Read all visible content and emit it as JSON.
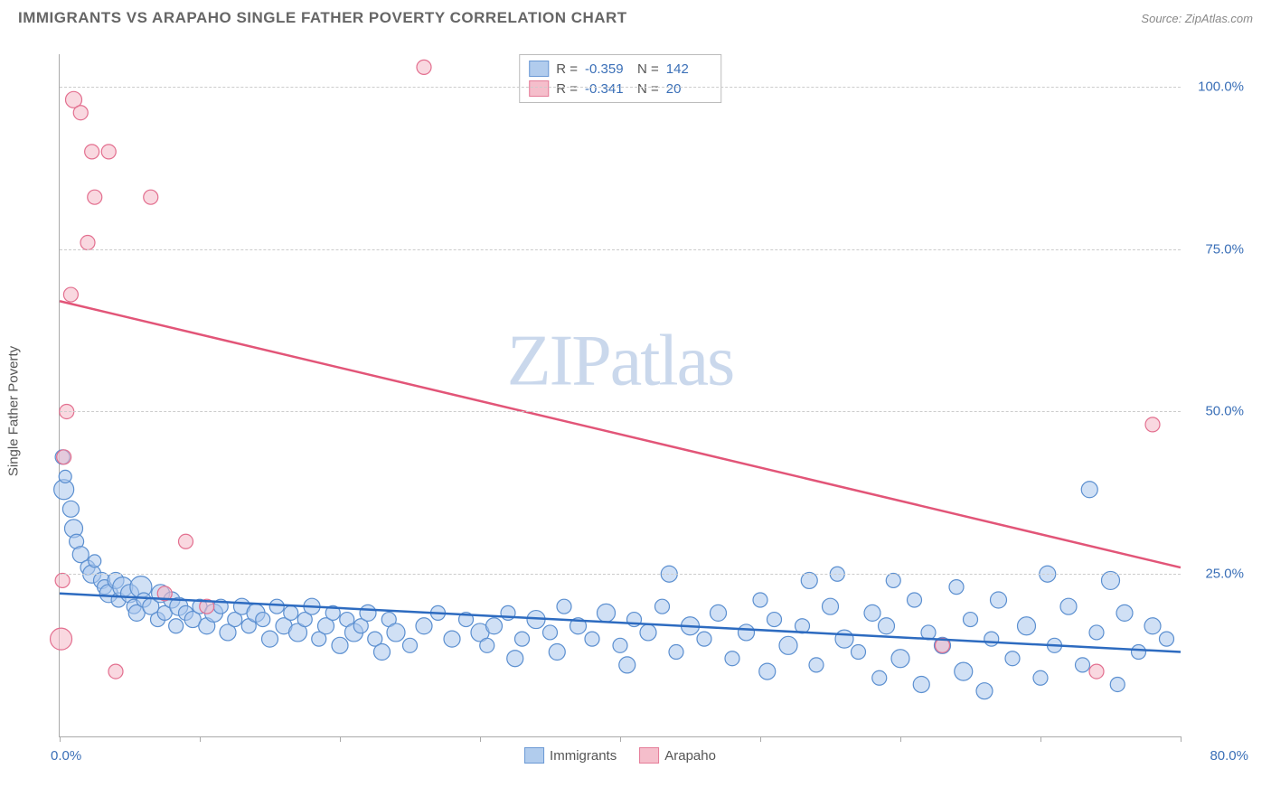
{
  "title": "IMMIGRANTS VS ARAPAHO SINGLE FATHER POVERTY CORRELATION CHART",
  "source_label": "Source:",
  "source_name": "ZipAtlas.com",
  "watermark_a": "ZIP",
  "watermark_b": "atlas",
  "ylabel": "Single Father Poverty",
  "chart": {
    "type": "scatter",
    "xlim": [
      0,
      80
    ],
    "ylim": [
      0,
      105
    ],
    "x_ticks": [
      0,
      10,
      20,
      30,
      40,
      50,
      60,
      70,
      80
    ],
    "y_gridlines": [
      25,
      50,
      75,
      100
    ],
    "y_tick_labels": [
      "25.0%",
      "50.0%",
      "75.0%",
      "100.0%"
    ],
    "x_limit_labels": {
      "left": "0.0%",
      "right": "80.0%"
    },
    "background_color": "#ffffff",
    "grid_color": "#cccccc",
    "axis_color": "#aaaaaa",
    "series": [
      {
        "name": "Immigrants",
        "fill": "#a9c7ec",
        "stroke": "#5b8fd0",
        "fill_opacity": 0.55,
        "line_color": "#2d6bc0",
        "line_width": 2.5,
        "trend": {
          "x1": 0,
          "y1": 22,
          "x2": 80,
          "y2": 13
        },
        "R": "-0.359",
        "N": "142",
        "points": [
          {
            "x": 0.2,
            "y": 43,
            "r": 8
          },
          {
            "x": 0.3,
            "y": 38,
            "r": 11
          },
          {
            "x": 0.4,
            "y": 40,
            "r": 7
          },
          {
            "x": 0.8,
            "y": 35,
            "r": 9
          },
          {
            "x": 1.0,
            "y": 32,
            "r": 10
          },
          {
            "x": 1.2,
            "y": 30,
            "r": 8
          },
          {
            "x": 1.5,
            "y": 28,
            "r": 9
          },
          {
            "x": 2.0,
            "y": 26,
            "r": 8
          },
          {
            "x": 2.3,
            "y": 25,
            "r": 10
          },
          {
            "x": 2.5,
            "y": 27,
            "r": 7
          },
          {
            "x": 3.0,
            "y": 24,
            "r": 9
          },
          {
            "x": 3.2,
            "y": 23,
            "r": 8
          },
          {
            "x": 3.5,
            "y": 22,
            "r": 10
          },
          {
            "x": 4.0,
            "y": 24,
            "r": 9
          },
          {
            "x": 4.2,
            "y": 21,
            "r": 8
          },
          {
            "x": 4.5,
            "y": 23,
            "r": 11
          },
          {
            "x": 5.0,
            "y": 22,
            "r": 10
          },
          {
            "x": 5.3,
            "y": 20,
            "r": 8
          },
          {
            "x": 5.5,
            "y": 19,
            "r": 9
          },
          {
            "x": 5.8,
            "y": 23,
            "r": 12
          },
          {
            "x": 6.0,
            "y": 21,
            "r": 8
          },
          {
            "x": 6.5,
            "y": 20,
            "r": 9
          },
          {
            "x": 7.0,
            "y": 18,
            "r": 8
          },
          {
            "x": 7.2,
            "y": 22,
            "r": 10
          },
          {
            "x": 7.5,
            "y": 19,
            "r": 8
          },
          {
            "x": 8.0,
            "y": 21,
            "r": 9
          },
          {
            "x": 8.3,
            "y": 17,
            "r": 8
          },
          {
            "x": 8.5,
            "y": 20,
            "r": 10
          },
          {
            "x": 9.0,
            "y": 19,
            "r": 8
          },
          {
            "x": 9.5,
            "y": 18,
            "r": 9
          },
          {
            "x": 10.0,
            "y": 20,
            "r": 8
          },
          {
            "x": 10.5,
            "y": 17,
            "r": 9
          },
          {
            "x": 11.0,
            "y": 19,
            "r": 10
          },
          {
            "x": 11.5,
            "y": 20,
            "r": 8
          },
          {
            "x": 12.0,
            "y": 16,
            "r": 9
          },
          {
            "x": 12.5,
            "y": 18,
            "r": 8
          },
          {
            "x": 13.0,
            "y": 20,
            "r": 9
          },
          {
            "x": 13.5,
            "y": 17,
            "r": 8
          },
          {
            "x": 14.0,
            "y": 19,
            "r": 10
          },
          {
            "x": 14.5,
            "y": 18,
            "r": 8
          },
          {
            "x": 15.0,
            "y": 15,
            "r": 9
          },
          {
            "x": 15.5,
            "y": 20,
            "r": 8
          },
          {
            "x": 16.0,
            "y": 17,
            "r": 9
          },
          {
            "x": 16.5,
            "y": 19,
            "r": 8
          },
          {
            "x": 17.0,
            "y": 16,
            "r": 10
          },
          {
            "x": 17.5,
            "y": 18,
            "r": 8
          },
          {
            "x": 18.0,
            "y": 20,
            "r": 9
          },
          {
            "x": 18.5,
            "y": 15,
            "r": 8
          },
          {
            "x": 19.0,
            "y": 17,
            "r": 9
          },
          {
            "x": 19.5,
            "y": 19,
            "r": 8
          },
          {
            "x": 20.0,
            "y": 14,
            "r": 9
          },
          {
            "x": 20.5,
            "y": 18,
            "r": 8
          },
          {
            "x": 21.0,
            "y": 16,
            "r": 10
          },
          {
            "x": 21.5,
            "y": 17,
            "r": 8
          },
          {
            "x": 22.0,
            "y": 19,
            "r": 9
          },
          {
            "x": 22.5,
            "y": 15,
            "r": 8
          },
          {
            "x": 23.0,
            "y": 13,
            "r": 9
          },
          {
            "x": 23.5,
            "y": 18,
            "r": 8
          },
          {
            "x": 24.0,
            "y": 16,
            "r": 10
          },
          {
            "x": 25.0,
            "y": 14,
            "r": 8
          },
          {
            "x": 26.0,
            "y": 17,
            "r": 9
          },
          {
            "x": 27.0,
            "y": 19,
            "r": 8
          },
          {
            "x": 28.0,
            "y": 15,
            "r": 9
          },
          {
            "x": 29.0,
            "y": 18,
            "r": 8
          },
          {
            "x": 30.0,
            "y": 16,
            "r": 10
          },
          {
            "x": 30.5,
            "y": 14,
            "r": 8
          },
          {
            "x": 31.0,
            "y": 17,
            "r": 9
          },
          {
            "x": 32.0,
            "y": 19,
            "r": 8
          },
          {
            "x": 32.5,
            "y": 12,
            "r": 9
          },
          {
            "x": 33.0,
            "y": 15,
            "r": 8
          },
          {
            "x": 34.0,
            "y": 18,
            "r": 10
          },
          {
            "x": 35.0,
            "y": 16,
            "r": 8
          },
          {
            "x": 35.5,
            "y": 13,
            "r": 9
          },
          {
            "x": 36.0,
            "y": 20,
            "r": 8
          },
          {
            "x": 37.0,
            "y": 17,
            "r": 9
          },
          {
            "x": 38.0,
            "y": 15,
            "r": 8
          },
          {
            "x": 39.0,
            "y": 19,
            "r": 10
          },
          {
            "x": 40.0,
            "y": 14,
            "r": 8
          },
          {
            "x": 40.5,
            "y": 11,
            "r": 9
          },
          {
            "x": 41.0,
            "y": 18,
            "r": 8
          },
          {
            "x": 42.0,
            "y": 16,
            "r": 9
          },
          {
            "x": 43.0,
            "y": 20,
            "r": 8
          },
          {
            "x": 43.5,
            "y": 25,
            "r": 9
          },
          {
            "x": 44.0,
            "y": 13,
            "r": 8
          },
          {
            "x": 45.0,
            "y": 17,
            "r": 10
          },
          {
            "x": 46.0,
            "y": 15,
            "r": 8
          },
          {
            "x": 47.0,
            "y": 19,
            "r": 9
          },
          {
            "x": 48.0,
            "y": 12,
            "r": 8
          },
          {
            "x": 49.0,
            "y": 16,
            "r": 9
          },
          {
            "x": 50.0,
            "y": 21,
            "r": 8
          },
          {
            "x": 50.5,
            "y": 10,
            "r": 9
          },
          {
            "x": 51.0,
            "y": 18,
            "r": 8
          },
          {
            "x": 52.0,
            "y": 14,
            "r": 10
          },
          {
            "x": 53.0,
            "y": 17,
            "r": 8
          },
          {
            "x": 53.5,
            "y": 24,
            "r": 9
          },
          {
            "x": 54.0,
            "y": 11,
            "r": 8
          },
          {
            "x": 55.0,
            "y": 20,
            "r": 9
          },
          {
            "x": 55.5,
            "y": 25,
            "r": 8
          },
          {
            "x": 56.0,
            "y": 15,
            "r": 10
          },
          {
            "x": 57.0,
            "y": 13,
            "r": 8
          },
          {
            "x": 58.0,
            "y": 19,
            "r": 9
          },
          {
            "x": 58.5,
            "y": 9,
            "r": 8
          },
          {
            "x": 59.0,
            "y": 17,
            "r": 9
          },
          {
            "x": 59.5,
            "y": 24,
            "r": 8
          },
          {
            "x": 60.0,
            "y": 12,
            "r": 10
          },
          {
            "x": 61.0,
            "y": 21,
            "r": 8
          },
          {
            "x": 61.5,
            "y": 8,
            "r": 9
          },
          {
            "x": 62.0,
            "y": 16,
            "r": 8
          },
          {
            "x": 63.0,
            "y": 14,
            "r": 9
          },
          {
            "x": 64.0,
            "y": 23,
            "r": 8
          },
          {
            "x": 64.5,
            "y": 10,
            "r": 10
          },
          {
            "x": 65.0,
            "y": 18,
            "r": 8
          },
          {
            "x": 66.0,
            "y": 7,
            "r": 9
          },
          {
            "x": 66.5,
            "y": 15,
            "r": 8
          },
          {
            "x": 67.0,
            "y": 21,
            "r": 9
          },
          {
            "x": 68.0,
            "y": 12,
            "r": 8
          },
          {
            "x": 69.0,
            "y": 17,
            "r": 10
          },
          {
            "x": 70.0,
            "y": 9,
            "r": 8
          },
          {
            "x": 70.5,
            "y": 25,
            "r": 9
          },
          {
            "x": 71.0,
            "y": 14,
            "r": 8
          },
          {
            "x": 72.0,
            "y": 20,
            "r": 9
          },
          {
            "x": 73.0,
            "y": 11,
            "r": 8
          },
          {
            "x": 73.5,
            "y": 38,
            "r": 9
          },
          {
            "x": 74.0,
            "y": 16,
            "r": 8
          },
          {
            "x": 75.0,
            "y": 24,
            "r": 10
          },
          {
            "x": 75.5,
            "y": 8,
            "r": 8
          },
          {
            "x": 76.0,
            "y": 19,
            "r": 9
          },
          {
            "x": 77.0,
            "y": 13,
            "r": 8
          },
          {
            "x": 78.0,
            "y": 17,
            "r": 9
          },
          {
            "x": 79.0,
            "y": 15,
            "r": 8
          }
        ]
      },
      {
        "name": "Arapaho",
        "fill": "#f4b8c6",
        "stroke": "#e36f8f",
        "fill_opacity": 0.55,
        "line_color": "#e25578",
        "line_width": 2.5,
        "trend": {
          "x1": 0,
          "y1": 67,
          "x2": 80,
          "y2": 26
        },
        "R": "-0.341",
        "N": "20",
        "points": [
          {
            "x": 0.2,
            "y": 24,
            "r": 8
          },
          {
            "x": 0.3,
            "y": 43,
            "r": 8
          },
          {
            "x": 0.5,
            "y": 50,
            "r": 8
          },
          {
            "x": 0.8,
            "y": 68,
            "r": 8
          },
          {
            "x": 1.0,
            "y": 98,
            "r": 9
          },
          {
            "x": 1.5,
            "y": 96,
            "r": 8
          },
          {
            "x": 2.0,
            "y": 76,
            "r": 8
          },
          {
            "x": 2.3,
            "y": 90,
            "r": 8
          },
          {
            "x": 2.5,
            "y": 83,
            "r": 8
          },
          {
            "x": 3.5,
            "y": 90,
            "r": 8
          },
          {
            "x": 4.0,
            "y": 10,
            "r": 8
          },
          {
            "x": 6.5,
            "y": 83,
            "r": 8
          },
          {
            "x": 7.5,
            "y": 22,
            "r": 8
          },
          {
            "x": 9.0,
            "y": 30,
            "r": 8
          },
          {
            "x": 10.5,
            "y": 20,
            "r": 8
          },
          {
            "x": 26.0,
            "y": 103,
            "r": 8
          },
          {
            "x": 63.0,
            "y": 14,
            "r": 8
          },
          {
            "x": 74.0,
            "y": 10,
            "r": 8
          },
          {
            "x": 78.0,
            "y": 48,
            "r": 8
          },
          {
            "x": 0.1,
            "y": 15,
            "r": 12
          }
        ]
      }
    ],
    "legend_top_labels": {
      "R": "R =",
      "N": "N ="
    },
    "legend_bottom": [
      "Immigrants",
      "Arapaho"
    ]
  }
}
